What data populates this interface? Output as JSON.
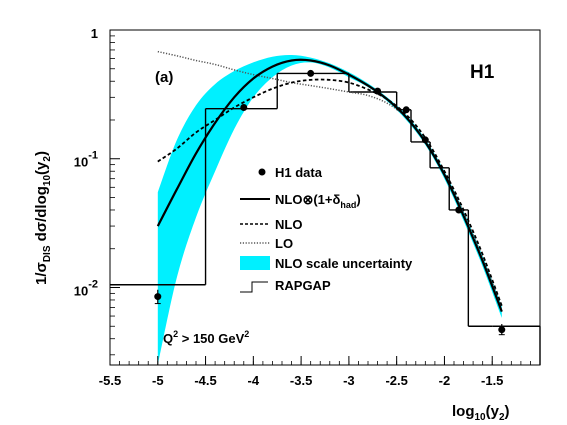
{
  "chart_data": {
    "type": "line",
    "panel_label": "(a)",
    "experiment_label": "H1",
    "cut_label": {
      "base": "Q",
      "sup1": "2",
      "mid": " > 150 GeV",
      "sup2": "2"
    },
    "xlabel": {
      "pre": "log",
      "sub": "10",
      "post": "(y",
      "sub2": "2",
      "close": ")"
    },
    "ylabel": {
      "a": "1/σ",
      "sub1": "DIS",
      "b": " dσ/dlog",
      "sub2": "10",
      "c": "(y",
      "sub3": "2",
      "d": ")"
    },
    "xlim": [
      -5.5,
      -1.0
    ],
    "ylim": [
      0.0025,
      1.0
    ],
    "y_scale": "log",
    "x_ticks": [
      "-5.5",
      "-5",
      "-4.5",
      "-4",
      "-3.5",
      "-3",
      "-2.5",
      "-2",
      "-1.5"
    ],
    "x_tick_values": [
      -5.5,
      -5,
      -4.5,
      -4,
      -3.5,
      -3,
      -2.5,
      -2,
      -1.5
    ],
    "y_ticks": [
      {
        "value": 1.0,
        "base": "1",
        "exp": ""
      },
      {
        "value": 0.1,
        "base": "10",
        "exp": "-1"
      },
      {
        "value": 0.01,
        "base": "10",
        "exp": "-2"
      }
    ],
    "legend": {
      "h1": "H1 data",
      "nlo_had": {
        "a": "NLO⊗(1+δ",
        "sub": "had",
        "b": ")"
      },
      "nlo": "NLO",
      "lo": "LO",
      "band": "NLO scale uncertainty",
      "rapgap": "RAPGAP"
    },
    "series": [
      {
        "name": "H1 data",
        "points": [
          {
            "x": -5.0,
            "y": 0.0085,
            "err_lo": 0.0075,
            "err_hi": 0.0096
          },
          {
            "x": -4.1,
            "y": 0.25
          },
          {
            "x": -3.4,
            "y": 0.46
          },
          {
            "x": -2.7,
            "y": 0.335
          },
          {
            "x": -2.4,
            "y": 0.24
          },
          {
            "x": -2.2,
            "y": 0.14
          },
          {
            "x": -1.85,
            "y": 0.04
          },
          {
            "x": -1.4,
            "y": 0.0047,
            "err_lo": 0.0043,
            "err_hi": 0.0052
          }
        ]
      },
      {
        "name": "NLO⊗(1+δhad)",
        "x": [
          -5.0,
          -4.8,
          -4.6,
          -4.4,
          -4.2,
          -4.0,
          -3.8,
          -3.6,
          -3.4,
          -3.2,
          -3.0,
          -2.8,
          -2.6,
          -2.4,
          -2.2,
          -2.0,
          -1.8,
          -1.6,
          -1.4
        ],
        "y": [
          0.03,
          0.058,
          0.11,
          0.19,
          0.3,
          0.42,
          0.52,
          0.58,
          0.58,
          0.53,
          0.45,
          0.37,
          0.29,
          0.21,
          0.135,
          0.075,
          0.036,
          0.016,
          0.0065
        ]
      },
      {
        "name": "NLO",
        "x": [
          -5.0,
          -4.8,
          -4.6,
          -4.4,
          -4.2,
          -4.0,
          -3.8,
          -3.6,
          -3.4,
          -3.2,
          -3.0,
          -2.8,
          -2.6,
          -2.4,
          -2.2,
          -2.0,
          -1.8,
          -1.6,
          -1.4
        ],
        "y": [
          0.095,
          0.12,
          0.16,
          0.2,
          0.25,
          0.3,
          0.35,
          0.39,
          0.41,
          0.41,
          0.39,
          0.345,
          0.29,
          0.22,
          0.145,
          0.08,
          0.04,
          0.018,
          0.0072
        ]
      },
      {
        "name": "LO",
        "x": [
          -5.0,
          -4.8,
          -4.6,
          -4.4,
          -4.2,
          -4.0,
          -3.8,
          -3.6,
          -3.4,
          -3.2,
          -3.0,
          -2.8,
          -2.6,
          -2.4,
          -2.2,
          -2.0,
          -1.8,
          -1.6,
          -1.4
        ],
        "y": [
          0.68,
          0.63,
          0.58,
          0.54,
          0.49,
          0.45,
          0.42,
          0.39,
          0.37,
          0.35,
          0.33,
          0.31,
          0.27,
          0.21,
          0.135,
          0.075,
          0.038,
          0.017,
          0.007
        ]
      },
      {
        "name": "NLO scale uncertainty",
        "x": [
          -5.0,
          -4.8,
          -4.6,
          -4.4,
          -4.2,
          -4.0,
          -3.8,
          -3.6,
          -3.4,
          -3.2,
          -3.0,
          -2.8,
          -2.6,
          -2.4,
          -2.2,
          -2.0,
          -1.8,
          -1.6,
          -1.4
        ],
        "y_low": [
          0.0025,
          0.012,
          0.035,
          0.08,
          0.17,
          0.3,
          0.43,
          0.53,
          0.56,
          0.51,
          0.43,
          0.36,
          0.28,
          0.2,
          0.128,
          0.07,
          0.033,
          0.0145,
          0.0058
        ],
        "y_high": [
          0.055,
          0.14,
          0.26,
          0.38,
          0.48,
          0.56,
          0.62,
          0.64,
          0.61,
          0.55,
          0.47,
          0.385,
          0.3,
          0.22,
          0.142,
          0.08,
          0.039,
          0.0175,
          0.0072
        ]
      },
      {
        "name": "RAPGAP",
        "edges": [
          -5.5,
          -4.5,
          -3.75,
          -3.0,
          -2.5,
          -2.35,
          -2.15,
          -1.95,
          -1.75,
          -1.5,
          -1.0
        ],
        "values": [
          0.0105,
          0.245,
          0.46,
          0.33,
          0.24,
          0.135,
          0.085,
          0.04,
          0.005,
          0.005
        ]
      }
    ]
  }
}
